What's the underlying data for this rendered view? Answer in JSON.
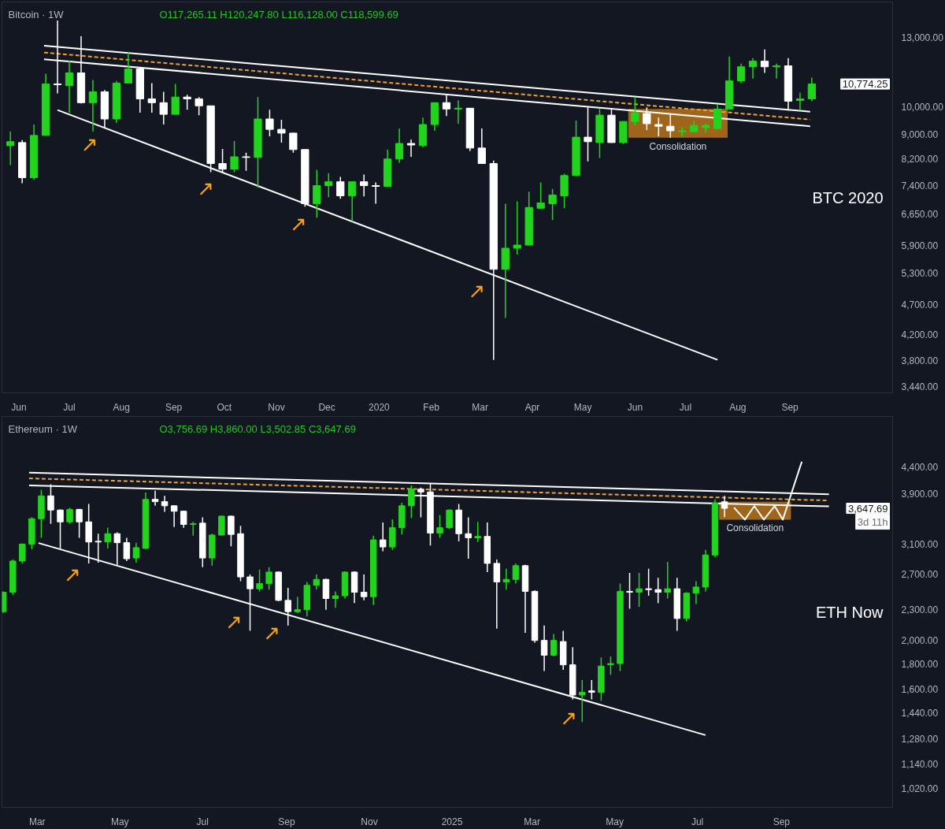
{
  "chart_data": [
    {
      "type": "candlestick",
      "title": "Bitcoin · 1W",
      "subtitle": "O117,265.11  H120,247.80  L116,128.00  C118,599.69",
      "log": true,
      "x": [
        "2019-05-27",
        "2019-06-03",
        "2019-06-10",
        "2019-06-17",
        "2019-06-24",
        "2019-07-01",
        "2019-07-08",
        "2019-07-15",
        "2019-07-22",
        "2019-07-29",
        "2019-08-05",
        "2019-08-12",
        "2019-08-19",
        "2019-08-26",
        "2019-09-02",
        "2019-09-09",
        "2019-09-16",
        "2019-09-23",
        "2019-09-30",
        "2019-10-07",
        "2019-10-14",
        "2019-10-21",
        "2019-10-28",
        "2019-11-04",
        "2019-11-11",
        "2019-11-18",
        "2019-11-25",
        "2019-12-02",
        "2019-12-09",
        "2019-12-16",
        "2019-12-23",
        "2019-12-30",
        "2020-01-06",
        "2020-01-13",
        "2020-01-20",
        "2020-01-27",
        "2020-02-03",
        "2020-02-10",
        "2020-02-17",
        "2020-02-24",
        "2020-03-02",
        "2020-03-09",
        "2020-03-16",
        "2020-03-23",
        "2020-03-30",
        "2020-04-06",
        "2020-04-13",
        "2020-04-20",
        "2020-04-27",
        "2020-05-04",
        "2020-05-11",
        "2020-05-18",
        "2020-05-25",
        "2020-06-01",
        "2020-06-08",
        "2020-06-15",
        "2020-06-22",
        "2020-06-29",
        "2020-07-06",
        "2020-07-13",
        "2020-07-20",
        "2020-07-27",
        "2020-08-03",
        "2020-08-10",
        "2020-08-17",
        "2020-08-24",
        "2020-08-31",
        "2020-09-07",
        "2020-09-14"
      ],
      "ohlc": [
        [
          8620,
          9090,
          8000,
          8750
        ],
        [
          8720,
          8800,
          7470,
          7630
        ],
        [
          7630,
          9340,
          7560,
          8960
        ],
        [
          8960,
          11340,
          8950,
          10900
        ],
        [
          10900,
          13880,
          10520,
          10870
        ],
        [
          10840,
          11930,
          9770,
          11370
        ],
        [
          11370,
          13080,
          10120,
          10150
        ],
        [
          10150,
          11070,
          9090,
          10580
        ],
        [
          10580,
          10650,
          9230,
          9540
        ],
        [
          9540,
          11030,
          9400,
          10940
        ],
        [
          10940,
          12290,
          10930,
          11540
        ],
        [
          11540,
          11610,
          9770,
          10300
        ],
        [
          10300,
          10940,
          9770,
          10150
        ],
        [
          10150,
          10580,
          9340,
          9710
        ],
        [
          9710,
          10900,
          9700,
          10370
        ],
        [
          10370,
          10460,
          9880,
          10300
        ],
        [
          10300,
          10370,
          9680,
          10030
        ],
        [
          10030,
          10040,
          7790,
          8050
        ],
        [
          8050,
          8510,
          7790,
          7880
        ],
        [
          7880,
          8770,
          7790,
          8260
        ],
        [
          8260,
          8390,
          7830,
          8240
        ],
        [
          8240,
          10370,
          7340,
          9540
        ],
        [
          9540,
          9880,
          8930,
          9170
        ],
        [
          9170,
          9510,
          8720,
          9040
        ],
        [
          9040,
          9050,
          8390,
          8490
        ],
        [
          8490,
          8500,
          6830,
          6910
        ],
        [
          6910,
          7860,
          6550,
          7400
        ],
        [
          7400,
          7760,
          7080,
          7510
        ],
        [
          7510,
          7650,
          7040,
          7120
        ],
        [
          7120,
          7520,
          6450,
          7510
        ],
        [
          7510,
          7720,
          7100,
          7400
        ],
        [
          7400,
          7490,
          6910,
          7380
        ],
        [
          7380,
          8490,
          7370,
          8190
        ],
        [
          8190,
          9200,
          8070,
          8690
        ],
        [
          8690,
          8820,
          8260,
          8640
        ],
        [
          8620,
          9590,
          8560,
          9340
        ],
        [
          9340,
          10160,
          9120,
          10150
        ],
        [
          10150,
          10460,
          9650,
          9910
        ],
        [
          9910,
          10240,
          9370,
          9940
        ],
        [
          9940,
          9950,
          8440,
          8540
        ],
        [
          8540,
          9200,
          8040,
          8050
        ],
        [
          8050,
          8140,
          3810,
          5380
        ],
        [
          5380,
          6910,
          4470,
          5830
        ],
        [
          5830,
          6970,
          5690,
          5900
        ],
        [
          5900,
          7230,
          5890,
          6810
        ],
        [
          6790,
          7490,
          6780,
          6930
        ],
        [
          6910,
          7310,
          6490,
          7140
        ],
        [
          7120,
          7740,
          6790,
          7690
        ],
        [
          7690,
          9480,
          7680,
          8900
        ],
        [
          8900,
          10000,
          8120,
          8750
        ],
        [
          8720,
          9910,
          8220,
          9680
        ],
        [
          9680,
          9910,
          8710,
          8720
        ],
        [
          8720,
          9460,
          8670,
          9450
        ],
        [
          9450,
          10340,
          9310,
          9770
        ],
        [
          9740,
          9970,
          9150,
          9370
        ],
        [
          9340,
          9590,
          8930,
          9280
        ],
        [
          9280,
          9710,
          8880,
          9120
        ],
        [
          9090,
          9260,
          8930,
          9120
        ],
        [
          9090,
          9480,
          9060,
          9310
        ],
        [
          9230,
          9370,
          9060,
          9310
        ],
        [
          9200,
          10090,
          9170,
          9910
        ],
        [
          9910,
          12100,
          9900,
          11030
        ],
        [
          11030,
          11780,
          10940,
          11640
        ],
        [
          11640,
          12030,
          11130,
          11890
        ],
        [
          11890,
          12430,
          11370,
          11640
        ],
        [
          11640,
          11780,
          11130,
          11680
        ],
        [
          11680,
          12030,
          9850,
          10210
        ],
        [
          10240,
          10550,
          9850,
          10300
        ],
        [
          10300,
          11170,
          10210,
          10900
        ]
      ],
      "series": [
        {
          "type": "line",
          "color": "#ffffff",
          "x": [
            "2019-06-16",
            "2020-09-13"
          ],
          "values": [
            12610,
            9810
          ]
        },
        {
          "type": "line",
          "color": "#f0a030",
          "line_style": "dashed",
          "x": [
            "2019-06-16",
            "2020-09-13"
          ],
          "values": [
            12290,
            9520
          ]
        },
        {
          "type": "line",
          "color": "#ffffff",
          "x": [
            "2019-06-16",
            "2020-09-13"
          ],
          "values": [
            11980,
            9280
          ]
        },
        {
          "type": "line",
          "color": "#ffffff",
          "x": [
            "2019-06-24",
            "2020-07-20"
          ],
          "values": [
            9870,
            3810
          ]
        }
      ],
      "bands": [
        {
          "axis": "x",
          "from": "2020-05-28",
          "to": "2020-07-26",
          "label": "Consolidation",
          "color": "#b8741a"
        }
      ],
      "annotations": [
        "BTC 2020",
        "10,774.25",
        {
          "text": "↗",
          "x": "2019-07-13",
          "y": 9430
        },
        {
          "text": "↗",
          "x": "2019-09-20",
          "y": 7970
        },
        {
          "text": "↗",
          "x": "2019-11-14",
          "y": 6960
        },
        {
          "text": "↗",
          "x": "2020-02-28",
          "y": 5390
        }
      ],
      "xlim": [
        "2019-05-22",
        "2020-11-01"
      ],
      "xticks": [
        {
          "value": "2019-06-01",
          "label": "Jun"
        },
        {
          "value": "2019-07-01",
          "label": "Jul"
        },
        {
          "value": "2019-08-01",
          "label": "Aug"
        },
        {
          "value": "2019-09-01",
          "label": "Sep"
        },
        {
          "value": "2019-10-01",
          "label": "Oct"
        },
        {
          "value": "2019-11-01",
          "label": "Nov"
        },
        {
          "value": "2019-12-01",
          "label": "Dec"
        },
        {
          "value": "2020-01-01",
          "label": "2020"
        },
        {
          "value": "2020-02-01",
          "label": "Feb"
        },
        {
          "value": "2020-03-01",
          "label": "Mar"
        },
        {
          "value": "2020-04-01",
          "label": "Apr"
        },
        {
          "value": "2020-05-01",
          "label": "May"
        },
        {
          "value": "2020-06-01",
          "label": "Jun"
        },
        {
          "value": "2020-07-01",
          "label": "Jul"
        },
        {
          "value": "2020-08-01",
          "label": "Aug"
        },
        {
          "value": "2020-09-01",
          "label": "Sep"
        }
      ],
      "ylim": [
        3360,
        14900
      ],
      "yticks": [
        {
          "value": 3440,
          "label": "3,440.00"
        },
        {
          "value": 3800,
          "label": "3,800.00"
        },
        {
          "value": 4200,
          "label": "4,200.00"
        },
        {
          "value": 4700,
          "label": "4,700.00"
        },
        {
          "value": 5300,
          "label": "5,300.00"
        },
        {
          "value": 5900,
          "label": "5,900.00"
        },
        {
          "value": 6650,
          "label": "6,650.00"
        },
        {
          "value": 7400,
          "label": "7,400.00"
        },
        {
          "value": 8200,
          "label": "8,200.00"
        },
        {
          "value": 9000,
          "label": "9,000.00"
        },
        {
          "value": 10000,
          "label": "10,000.00"
        },
        {
          "value": 13000,
          "label": "13,000.00"
        }
      ]
    },
    {
      "type": "candlestick",
      "title": "Ethereum · 1W",
      "subtitle": "O3,756.69  H3,860.00  L3,502.85  C3,647.69",
      "log": true,
      "x": [
        "2024-02-05",
        "2024-02-12",
        "2024-02-19",
        "2024-02-26",
        "2024-03-04",
        "2024-03-11",
        "2024-03-18",
        "2024-03-25",
        "2024-04-01",
        "2024-04-08",
        "2024-04-15",
        "2024-04-22",
        "2024-04-29",
        "2024-05-06",
        "2024-05-13",
        "2024-05-20",
        "2024-05-27",
        "2024-06-03",
        "2024-06-10",
        "2024-06-17",
        "2024-06-24",
        "2024-07-01",
        "2024-07-08",
        "2024-07-15",
        "2024-07-22",
        "2024-07-29",
        "2024-08-05",
        "2024-08-12",
        "2024-08-19",
        "2024-08-26",
        "2024-09-02",
        "2024-09-09",
        "2024-09-16",
        "2024-09-23",
        "2024-09-30",
        "2024-10-07",
        "2024-10-14",
        "2024-10-21",
        "2024-10-28",
        "2024-11-04",
        "2024-11-11",
        "2024-11-18",
        "2024-11-25",
        "2024-12-02",
        "2024-12-09",
        "2024-12-16",
        "2024-12-23",
        "2024-12-30",
        "2025-01-06",
        "2025-01-13",
        "2025-01-20",
        "2025-01-27",
        "2025-02-03",
        "2025-02-10",
        "2025-02-17",
        "2025-02-24",
        "2025-03-03",
        "2025-03-10",
        "2025-03-17",
        "2025-03-24",
        "2025-03-31",
        "2025-04-07",
        "2025-04-14",
        "2025-04-21",
        "2025-04-28",
        "2025-05-05",
        "2025-05-12",
        "2025-05-19",
        "2025-05-26",
        "2025-06-02",
        "2025-06-09",
        "2025-06-16",
        "2025-06-23",
        "2025-06-30",
        "2025-07-07",
        "2025-07-14",
        "2025-07-21"
      ],
      "ohlc": [
        [
          2280,
          2500,
          2265,
          2490
        ],
        [
          2490,
          2890,
          2460,
          2870
        ],
        [
          2870,
          3110,
          2840,
          3100
        ],
        [
          3100,
          3500,
          3030,
          3480
        ],
        [
          3480,
          3970,
          3190,
          3860
        ],
        [
          3860,
          4070,
          3400,
          3620
        ],
        [
          3620,
          3630,
          3040,
          3430
        ],
        [
          3430,
          3660,
          3400,
          3630
        ],
        [
          3630,
          3640,
          3190,
          3430
        ],
        [
          3430,
          3720,
          2840,
          3130
        ],
        [
          3140,
          3250,
          2850,
          3130
        ],
        [
          3130,
          3340,
          3040,
          3250
        ],
        [
          3250,
          3270,
          2820,
          3120
        ],
        [
          3120,
          3190,
          2870,
          2900
        ],
        [
          2910,
          3120,
          2850,
          3050
        ],
        [
          3040,
          3920,
          3030,
          3800
        ],
        [
          3800,
          3950,
          3690,
          3760
        ],
        [
          3760,
          3860,
          3590,
          3690
        ],
        [
          3690,
          3700,
          3350,
          3600
        ],
        [
          3600,
          3610,
          3340,
          3390
        ],
        [
          3390,
          3430,
          3220,
          3400
        ],
        [
          3410,
          3500,
          2790,
          2910
        ],
        [
          2910,
          3250,
          2810,
          3230
        ],
        [
          3230,
          3530,
          3220,
          3520
        ],
        [
          3520,
          3530,
          3070,
          3240
        ],
        [
          3250,
          3370,
          2620,
          2670
        ],
        [
          2670,
          2700,
          2090,
          2530
        ],
        [
          2530,
          2760,
          2500,
          2590
        ],
        [
          2590,
          2790,
          2520,
          2730
        ],
        [
          2730,
          2740,
          2390,
          2400
        ],
        [
          2400,
          2540,
          2140,
          2280
        ],
        [
          2280,
          2440,
          2265,
          2300
        ],
        [
          2300,
          2610,
          2230,
          2570
        ],
        [
          2570,
          2700,
          2520,
          2640
        ],
        [
          2640,
          2650,
          2300,
          2420
        ],
        [
          2420,
          2500,
          2320,
          2450
        ],
        [
          2450,
          2740,
          2420,
          2730
        ],
        [
          2730,
          2740,
          2370,
          2490
        ],
        [
          2490,
          2700,
          2400,
          2440
        ],
        [
          2440,
          3220,
          2350,
          3160
        ],
        [
          3160,
          3420,
          3000,
          3060
        ],
        [
          3060,
          3470,
          3020,
          3340
        ],
        [
          3340,
          3740,
          3240,
          3690
        ],
        [
          3690,
          4050,
          3490,
          3980
        ],
        [
          3980,
          4010,
          3500,
          3930
        ],
        [
          3930,
          4080,
          3080,
          3260
        ],
        [
          3260,
          3540,
          3190,
          3340
        ],
        [
          3340,
          3630,
          3320,
          3620
        ],
        [
          3620,
          3720,
          3140,
          3250
        ],
        [
          3250,
          3500,
          2900,
          3190
        ],
        [
          3190,
          3430,
          3130,
          3210
        ],
        [
          3210,
          3420,
          2730,
          2840
        ],
        [
          2840,
          2890,
          2110,
          2610
        ],
        [
          2610,
          2770,
          2520,
          2640
        ],
        [
          2640,
          2840,
          2590,
          2810
        ],
        [
          2810,
          2820,
          2070,
          2500
        ],
        [
          2500,
          2510,
          1980,
          2000
        ],
        [
          2000,
          2140,
          1740,
          1870
        ],
        [
          1870,
          2060,
          1860,
          2000
        ],
        [
          1990,
          2090,
          1750,
          1790
        ],
        [
          1790,
          1940,
          1530,
          1560
        ],
        [
          1560,
          1670,
          1380,
          1580
        ],
        [
          1590,
          1670,
          1530,
          1580
        ],
        [
          1580,
          1850,
          1520,
          1780
        ],
        [
          1790,
          1860,
          1710,
          1800
        ],
        [
          1800,
          2590,
          1740,
          2500
        ],
        [
          2500,
          2720,
          2310,
          2490
        ],
        [
          2490,
          2720,
          2330,
          2530
        ],
        [
          2530,
          2770,
          2450,
          2520
        ],
        [
          2520,
          2660,
          2370,
          2490
        ],
        [
          2490,
          2860,
          2420,
          2530
        ],
        [
          2530,
          2660,
          2090,
          2210
        ],
        [
          2210,
          2490,
          2180,
          2480
        ],
        [
          2480,
          2620,
          2360,
          2550
        ],
        [
          2550,
          3020,
          2500,
          2950
        ],
        [
          2950,
          3800,
          2920,
          3740
        ],
        [
          3756.69,
          3860,
          3502.85,
          3647.69
        ]
      ],
      "series": [
        {
          "type": "line",
          "color": "#ffffff",
          "x": [
            "2024-02-24",
            "2025-10-06"
          ],
          "values": [
            4290,
            3890
          ]
        },
        {
          "type": "line",
          "color": "#f0a030",
          "line_style": "dashed",
          "x": [
            "2024-02-24",
            "2025-10-06"
          ],
          "values": [
            4180,
            3780
          ]
        },
        {
          "type": "line",
          "color": "#ffffff",
          "x": [
            "2024-02-24",
            "2025-10-06"
          ],
          "values": [
            4050,
            3680
          ]
        },
        {
          "type": "line",
          "color": "#ffffff",
          "x": [
            "2024-03-02",
            "2025-07-07"
          ],
          "values": [
            3115,
            1300
          ]
        },
        {
          "type": "line",
          "color": "#ffffff",
          "x": [
            "2025-07-28",
            "2025-08-05",
            "2025-08-12",
            "2025-08-19",
            "2025-08-27",
            "2025-09-02",
            "2025-09-16"
          ],
          "values": [
            3660,
            3465,
            3685,
            3465,
            3685,
            3465,
            4510
          ]
        }
      ],
      "bands": [
        {
          "axis": "x",
          "from": "2025-07-17",
          "to": "2025-09-08",
          "label": "Consolidation",
          "color": "#b8741a"
        }
      ],
      "annotations": [
        "ETH Now",
        "3,647.69",
        "3d 11h",
        {
          "text": "↗",
          "x": "2024-03-27",
          "y": 2980
        },
        {
          "text": "↗",
          "x": "2024-07-24",
          "y": 2410
        },
        {
          "text": "↗",
          "x": "2024-08-21",
          "y": 2290
        },
        {
          "text": "↗",
          "x": "2025-03-28",
          "y": 1555
        }
      ],
      "xlim": [
        "2024-02-04",
        "2025-11-22"
      ],
      "xticks": [
        {
          "value": "2024-03-01",
          "label": "Mar"
        },
        {
          "value": "2024-05-01",
          "label": "May"
        },
        {
          "value": "2024-07-01",
          "label": "Jul"
        },
        {
          "value": "2024-09-01",
          "label": "Sep"
        },
        {
          "value": "2024-11-01",
          "label": "Nov"
        },
        {
          "value": "2025-01-01",
          "label": "2025"
        },
        {
          "value": "2025-03-01",
          "label": "Mar"
        },
        {
          "value": "2025-05-01",
          "label": "May"
        },
        {
          "value": "2025-07-01",
          "label": "Jul"
        },
        {
          "value": "2025-09-01",
          "label": "Sep"
        }
      ],
      "ylim": [
        936,
        5540
      ],
      "yticks": [
        {
          "value": 1020,
          "label": "1,020.00"
        },
        {
          "value": 1140,
          "label": "1,140.00"
        },
        {
          "value": 1280,
          "label": "1,280.00"
        },
        {
          "value": 1440,
          "label": "1,440.00"
        },
        {
          "value": 1600,
          "label": "1,600.00"
        },
        {
          "value": 1800,
          "label": "1,800.00"
        },
        {
          "value": 2000,
          "label": "2,000.00"
        },
        {
          "value": 2300,
          "label": "2,300.00"
        },
        {
          "value": 2700,
          "label": "2,700.00"
        },
        {
          "value": 3100,
          "label": "3,100.00"
        },
        {
          "value": 3900,
          "label": "3,900.00"
        },
        {
          "value": 4400,
          "label": "4,400.00"
        }
      ]
    }
  ]
}
